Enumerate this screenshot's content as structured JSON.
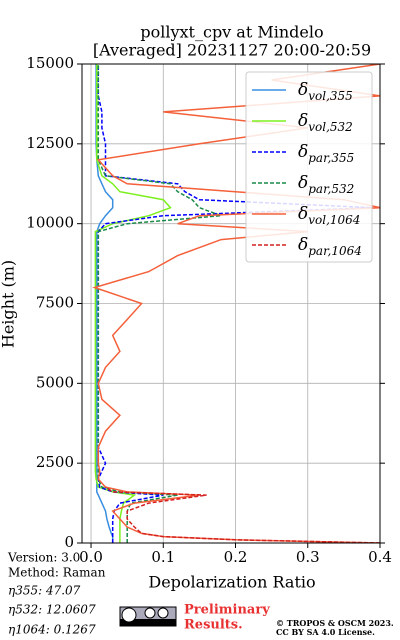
{
  "chart_data": {
    "type": "profile",
    "title": [
      "pollyxt_cpv at Mindelo",
      "[Averaged] 20231127 20:00-20:59"
    ],
    "x_label": "Depolarization Ratio",
    "y_label": "Height (m)",
    "xlim": [
      -0.0125,
      0.4
    ],
    "ylim": [
      0,
      15000
    ],
    "xticks": [
      {
        "value": 0,
        "label": "0.0"
      },
      0.1,
      0.2,
      0.3,
      0.4
    ],
    "yticks": [
      0,
      2500,
      5000,
      7500,
      10000,
      12500,
      15000
    ],
    "grid": true,
    "legend": "upper right",
    "heights": [
      0,
      100,
      200,
      300,
      500,
      750,
      1000,
      1250,
      1500,
      1600,
      1750,
      2000,
      2250,
      2500,
      3000,
      3500,
      4000,
      4500,
      5000,
      5500,
      6000,
      6500,
      7000,
      7500,
      8000,
      8500,
      9000,
      9500,
      9750,
      10000,
      10250,
      10500,
      10750,
      11000,
      11250,
      11500,
      12000,
      12500,
      13000,
      13500,
      14000,
      14500,
      15000
    ],
    "series": [
      {
        "name": "δvol,355",
        "color": "#3a8ee0",
        "dash": false,
        "values": [
          0.03,
          0.03,
          0.03,
          0.028,
          0.025,
          0.022,
          0.02,
          0.015,
          0.01,
          0.008,
          0.008,
          0.008,
          0.008,
          0.008,
          0.008,
          0.008,
          0.008,
          0.008,
          0.008,
          0.008,
          0.008,
          0.008,
          0.008,
          0.008,
          0.008,
          0.008,
          0.008,
          0.008,
          0.008,
          0.012,
          0.02,
          0.03,
          0.03,
          0.02,
          0.015,
          0.01,
          0.008,
          0.007,
          0.007,
          0.007,
          0.007,
          0.007,
          0.007
        ]
      },
      {
        "name": "δvol,532",
        "color": "#7cf01e",
        "dash": false,
        "values": [
          0.04,
          0.04,
          0.04,
          0.04,
          0.04,
          0.04,
          0.042,
          0.045,
          0.06,
          0.03,
          0.01,
          0.007,
          0.006,
          0.006,
          0.006,
          0.006,
          0.006,
          0.006,
          0.006,
          0.006,
          0.006,
          0.006,
          0.006,
          0.006,
          0.006,
          0.006,
          0.006,
          0.006,
          0.006,
          0.03,
          0.08,
          0.11,
          0.1,
          0.04,
          0.03,
          0.015,
          0.008,
          0.008,
          0.008,
          0.008,
          0.008,
          0.008,
          0.008
        ]
      },
      {
        "name": "δpar,355",
        "color": "#0000ff",
        "dash": true,
        "values": [
          0.03,
          0.03,
          0.03,
          0.03,
          0.03,
          0.03,
          0.032,
          0.04,
          0.1,
          0.03,
          0.012,
          0.01,
          0.015,
          0.02,
          0.01,
          0.01,
          0.01,
          0.01,
          0.01,
          0.01,
          0.01,
          0.01,
          0.01,
          0.01,
          0.01,
          0.01,
          0.01,
          0.01,
          0.01,
          0.02,
          0.1,
          0.39,
          0.15,
          0.13,
          0.12,
          0.02,
          0.02,
          0.02,
          0.015,
          0.015,
          0.01,
          0.01,
          0.01
        ]
      },
      {
        "name": "δpar,532",
        "color": "#1a8a4a",
        "dash": true,
        "values": [
          0.05,
          0.05,
          0.05,
          0.05,
          0.05,
          0.05,
          0.05,
          0.055,
          0.12,
          0.04,
          0.015,
          0.01,
          0.01,
          0.01,
          0.01,
          0.01,
          0.01,
          0.01,
          0.01,
          0.01,
          0.01,
          0.01,
          0.01,
          0.01,
          0.01,
          0.01,
          0.01,
          0.01,
          0.01,
          0.05,
          0.18,
          0.15,
          0.14,
          0.12,
          0.11,
          0.02,
          0.01,
          0.01,
          0.01,
          0.01,
          0.01,
          0.01,
          0.01
        ]
      },
      {
        "name": "δvol,1064",
        "color": "#f4603a",
        "dash": false,
        "values": [
          0.4,
          0.2,
          0.1,
          0.07,
          0.05,
          0.04,
          0.03,
          0.06,
          0.15,
          0.05,
          0.02,
          0.01,
          0.012,
          0.01,
          0.01,
          0.02,
          0.04,
          0.015,
          0.01,
          0.02,
          0.04,
          0.03,
          0.05,
          0.07,
          0.005,
          0.08,
          0.12,
          0.18,
          0.3,
          0.12,
          0.15,
          0.4,
          0.35,
          0.2,
          0.05,
          0.03,
          0.01,
          0.15,
          0.3,
          0.1,
          0.4,
          0.25,
          0.4
        ]
      },
      {
        "name": "δpar,1064",
        "color": "#d42020",
        "dash": true,
        "values": [
          0.4,
          0.2,
          0.1,
          0.07,
          0.06,
          0.05,
          0.05,
          0.08,
          0.16,
          0.03,
          0.02,
          null,
          null,
          null,
          null,
          null,
          null,
          null,
          null,
          null,
          null,
          null,
          null,
          null,
          null,
          null,
          null,
          null,
          null,
          null,
          null,
          null,
          null,
          null,
          null,
          null,
          null,
          null,
          null,
          null,
          null,
          null,
          null
        ]
      }
    ],
    "annotations": [
      "Version: 3.0",
      "Method: Raman",
      "η355:  47.07",
      "η532: 12.0607",
      "η1064: 0.1267"
    ],
    "badge": [
      "Preliminary",
      "Results."
    ],
    "copyright": [
      "© TROPOS & OSCM 2023.",
      "CC BY SA 4.0 License."
    ]
  }
}
